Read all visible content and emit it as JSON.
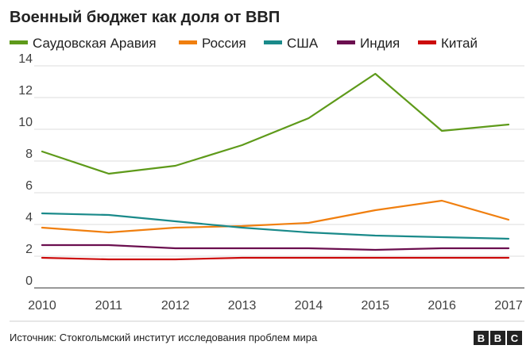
{
  "chart_data": {
    "type": "line",
    "title": "Военный бюджет как доля от ВВП",
    "xlabel": "",
    "ylabel": "",
    "x": [
      2010,
      2011,
      2012,
      2013,
      2014,
      2015,
      2016,
      2017
    ],
    "x_tick_labels": [
      "2010",
      "2011",
      "2012",
      "2013",
      "2014",
      "2015",
      "2016",
      "2017"
    ],
    "ylim": [
      0,
      14
    ],
    "y_ticks": [
      0,
      2,
      4,
      6,
      8,
      10,
      12,
      14
    ],
    "y_tick_labels": [
      "0",
      "2",
      "4",
      "6",
      "8",
      "10",
      "12",
      "14"
    ],
    "grid": "horizontal",
    "legend_position": "top",
    "series": [
      {
        "name": "Саудовская Аравия",
        "color": "#5e9a1a",
        "values": [
          8.6,
          7.2,
          7.7,
          9.0,
          10.7,
          13.5,
          9.9,
          10.3
        ]
      },
      {
        "name": "Россия",
        "color": "#f07f0f",
        "values": [
          3.8,
          3.5,
          3.8,
          3.9,
          4.1,
          4.9,
          5.5,
          4.3
        ]
      },
      {
        "name": "США",
        "color": "#1a8a8a",
        "values": [
          4.7,
          4.6,
          4.2,
          3.8,
          3.5,
          3.3,
          3.2,
          3.1
        ]
      },
      {
        "name": "Индия",
        "color": "#6b0f4f",
        "values": [
          2.7,
          2.7,
          2.5,
          2.5,
          2.5,
          2.4,
          2.5,
          2.5
        ]
      },
      {
        "name": "Китай",
        "color": "#cc0a0a",
        "values": [
          1.9,
          1.8,
          1.8,
          1.9,
          1.9,
          1.9,
          1.9,
          1.9
        ]
      }
    ]
  },
  "footer": {
    "source": "Источник: Стокгольмский институт исследования проблем мира",
    "logo_letters": [
      "B",
      "B",
      "C"
    ]
  }
}
